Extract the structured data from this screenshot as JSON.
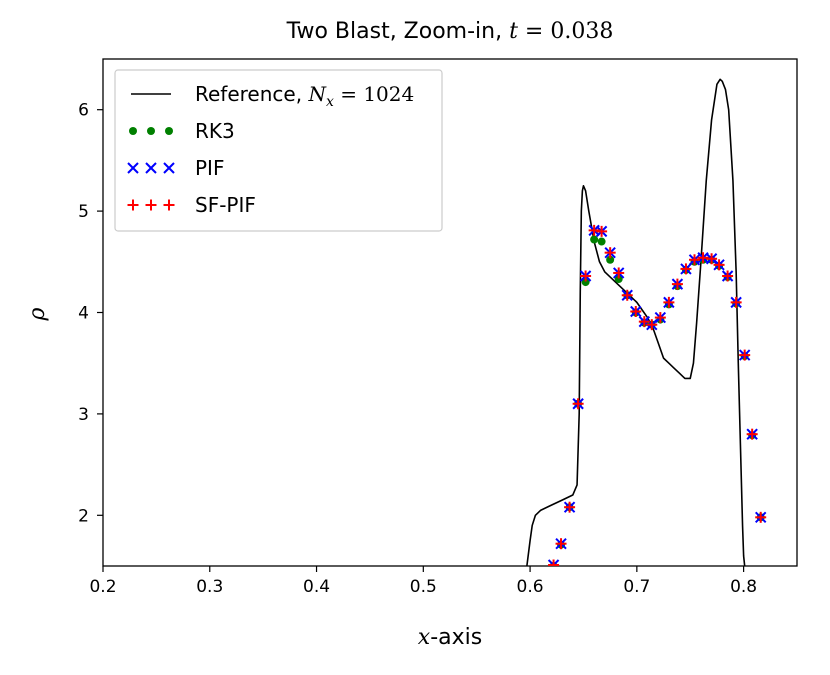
{
  "chart_data": {
    "type": "line",
    "title": {
      "prefix": "Two Blast, Zoom-in, ",
      "var": "t",
      "eq": " = 0.038"
    },
    "xlabel": {
      "var": "x",
      "suffix": "-axis"
    },
    "ylabel": "ρ",
    "xlim": [
      0.2,
      0.85
    ],
    "ylim": [
      1.5,
      6.5
    ],
    "xticks": [
      0.2,
      0.3,
      0.4,
      0.5,
      0.6,
      0.7,
      0.8
    ],
    "xtick_labels": [
      "0.2",
      "0.3",
      "0.4",
      "0.5",
      "0.6",
      "0.7",
      "0.8"
    ],
    "yticks": [
      2,
      3,
      4,
      5,
      6
    ],
    "ytick_labels": [
      "2",
      "3",
      "4",
      "5",
      "6"
    ],
    "legend_position": "top-left",
    "legend": [
      {
        "label": "Reference, ",
        "math_var": "N",
        "math_sub": "x",
        "math_eq": " = 1024"
      },
      {
        "label": "RK3"
      },
      {
        "label": "PIF"
      },
      {
        "label": "SF-PIF"
      }
    ],
    "series": [
      {
        "name": "Reference, Nx = 1024",
        "style": "line",
        "color": "#000000",
        "x": [
          0.597,
          0.6,
          0.602,
          0.605,
          0.61,
          0.62,
          0.63,
          0.64,
          0.644,
          0.646,
          0.647,
          0.648,
          0.649,
          0.65,
          0.652,
          0.655,
          0.66,
          0.665,
          0.67,
          0.68,
          0.69,
          0.7,
          0.71,
          0.715,
          0.72,
          0.725,
          0.73,
          0.735,
          0.74,
          0.745,
          0.75,
          0.753,
          0.756,
          0.76,
          0.765,
          0.77,
          0.775,
          0.778,
          0.78,
          0.783,
          0.786,
          0.79,
          0.793,
          0.795,
          0.797,
          0.798,
          0.799,
          0.8,
          0.801
        ],
        "y": [
          1.5,
          1.75,
          1.9,
          2.0,
          2.05,
          2.1,
          2.15,
          2.2,
          2.3,
          3.0,
          4.2,
          5.0,
          5.2,
          5.25,
          5.2,
          5.0,
          4.7,
          4.5,
          4.4,
          4.3,
          4.2,
          4.1,
          3.95,
          3.85,
          3.7,
          3.55,
          3.5,
          3.45,
          3.4,
          3.35,
          3.35,
          3.5,
          3.9,
          4.5,
          5.3,
          5.9,
          6.25,
          6.3,
          6.28,
          6.2,
          6.0,
          5.3,
          4.4,
          3.5,
          2.7,
          2.3,
          1.9,
          1.6,
          1.5
        ]
      },
      {
        "name": "RK3",
        "style": "dot",
        "color": "#008000",
        "x": [
          0.622,
          0.629,
          0.637,
          0.645,
          0.652,
          0.66,
          0.667,
          0.675,
          0.683,
          0.691,
          0.699,
          0.707,
          0.714,
          0.722,
          0.73,
          0.738,
          0.746,
          0.754,
          0.762,
          0.77,
          0.777,
          0.785,
          0.793,
          0.801,
          0.808,
          0.816
        ],
        "y": [
          1.5,
          1.71,
          2.08,
          3.1,
          4.3,
          4.72,
          4.7,
          4.52,
          4.33,
          4.17,
          4.0,
          3.9,
          3.88,
          3.93,
          4.08,
          4.26,
          4.42,
          4.5,
          4.52,
          4.52,
          4.46,
          4.35,
          4.09,
          3.57,
          2.79,
          1.98
        ]
      },
      {
        "name": "PIF",
        "style": "x",
        "color": "#0000ff",
        "x": [
          0.622,
          0.629,
          0.637,
          0.645,
          0.652,
          0.66,
          0.667,
          0.675,
          0.683,
          0.691,
          0.699,
          0.707,
          0.714,
          0.722,
          0.73,
          0.738,
          0.746,
          0.754,
          0.762,
          0.77,
          0.777,
          0.785,
          0.793,
          0.801,
          0.808,
          0.816
        ],
        "y": [
          1.51,
          1.72,
          2.08,
          3.1,
          4.36,
          4.81,
          4.8,
          4.59,
          4.39,
          4.17,
          4.01,
          3.91,
          3.88,
          3.95,
          4.1,
          4.28,
          4.43,
          4.52,
          4.54,
          4.53,
          4.47,
          4.36,
          4.1,
          3.58,
          2.8,
          1.98
        ]
      },
      {
        "name": "SF-PIF",
        "style": "plus",
        "color": "#ff0000",
        "x": [
          0.622,
          0.629,
          0.637,
          0.645,
          0.652,
          0.66,
          0.667,
          0.675,
          0.683,
          0.691,
          0.699,
          0.707,
          0.714,
          0.722,
          0.73,
          0.738,
          0.746,
          0.754,
          0.762,
          0.77,
          0.777,
          0.785,
          0.793,
          0.801,
          0.808,
          0.816
        ],
        "y": [
          1.51,
          1.72,
          2.08,
          3.1,
          4.36,
          4.81,
          4.8,
          4.59,
          4.39,
          4.17,
          4.01,
          3.91,
          3.88,
          3.95,
          4.1,
          4.28,
          4.43,
          4.52,
          4.54,
          4.53,
          4.47,
          4.36,
          4.1,
          3.58,
          2.8,
          1.98
        ]
      }
    ]
  }
}
